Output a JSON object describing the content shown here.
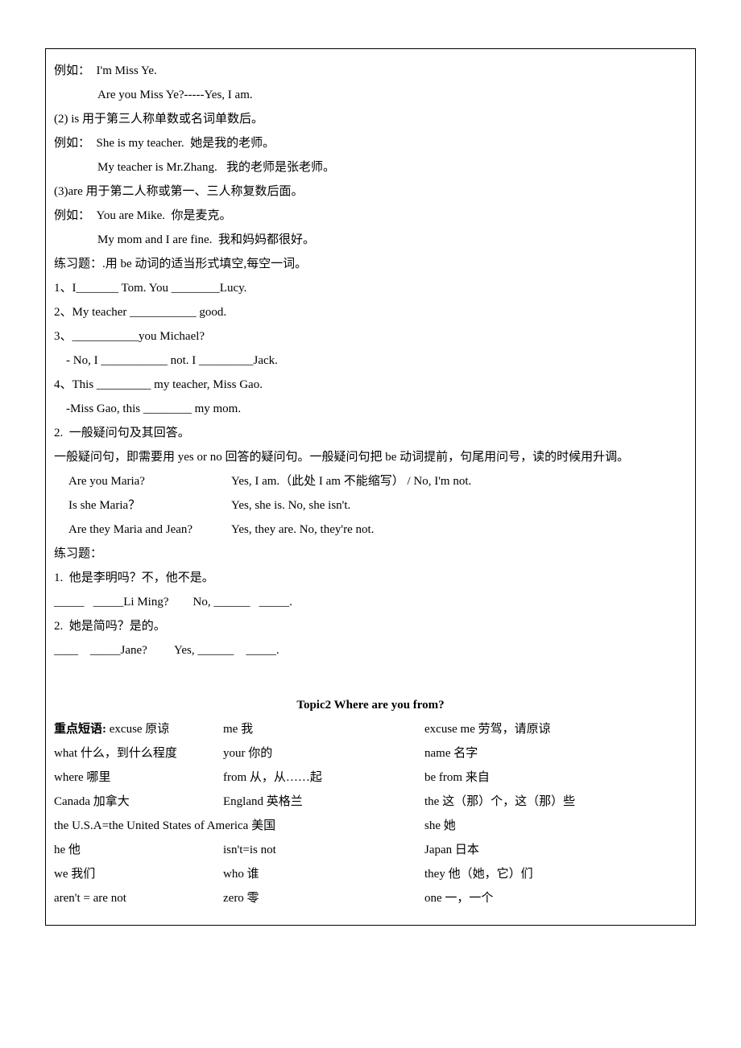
{
  "ex1": {
    "l1": "例如：  I'm Miss Ye.",
    "l2": "Are you Miss Ye?-----Yes, I am.",
    "l3": "(2) is 用于第三人称单数或名词单数后。",
    "l4": "例如：  She is my teacher.  她是我的老师。",
    "l5": "My teacher is Mr.Zhang.   我的老师是张老师。",
    "l6": "(3)are 用于第二人称或第一、三人称复数后面。",
    "l7": "例如：  You are Mike.  你是麦克。",
    "l8": "My mom and I are fine.  我和妈妈都很好。",
    "l9": "练习题：.用 be 动词的适当形式填空,每空一词。",
    "l10": "1、I_______ Tom. You ________Lucy.",
    "l11": "2、My teacher ___________ good.",
    "l12": "3、___________you Michael?",
    "l13": "    - No, I ___________ not. I _________Jack.",
    "l14": "4、This _________ my teacher, Miss Gao.",
    "l15": "    -Miss Gao, this ________ my mom.",
    "l16": "2.  一般疑问句及其回答。",
    "l17": "一般疑问句，即需要用 yes or no 回答的疑问句。一般疑问句把 be 动词提前，句尾用问号，读的时候用升调。"
  },
  "qna": {
    "q1": "Are you Maria?",
    "a1": "Yes, I am.（此处 I am  不能缩写）  / No, I'm not.",
    "q2": "Is she Maria？",
    "a2": "Yes, she is.     No, she isn't.",
    "q3": "Are they Maria and Jean?",
    "a3": "Yes, they are.      No, they're not."
  },
  "prac2": {
    "title": "练习题：",
    "p1": "1.  他是李明吗？不，他不是。",
    "p1b": "_____   _____Li Ming?        No, ______   _____.",
    "p2": "2.  她是简吗？是的。",
    "p2b": "____    _____Jane?         Yes, ______    _____."
  },
  "topic2": {
    "title": "Topic2    Where are you from?",
    "label": "重点短语: ",
    "r1c1": "excuse  原谅",
    "r1c2": "me  我",
    "r1c3": "excuse me  劳驾，请原谅",
    "r2c1": "what  什么，到什么程度",
    "r2c2": "your 你的",
    "r2c3": "name  名字",
    "r3c1": "where  哪里",
    "r3c2": "from  从，从……起",
    "r3c3": "be from  来自",
    "r4c1": "Canada  加拿大",
    "r4c2": "England  英格兰",
    "r4c3": "the 这（那）个，这（那）些",
    "r5c1": "the U.S.A=the United States of America  美国",
    "r5c3": "she 她",
    "r6c1": "he  他",
    "r6c2": "isn't=is not",
    "r6c3": "Japan  日本",
    "r7c1": "we  我们",
    "r7c2": "who  谁",
    "r7c3": "they 他（她，它）们",
    "r8c1": "aren't = are not",
    "r8c2": "zero 零",
    "r8c3": "one 一，一个"
  }
}
